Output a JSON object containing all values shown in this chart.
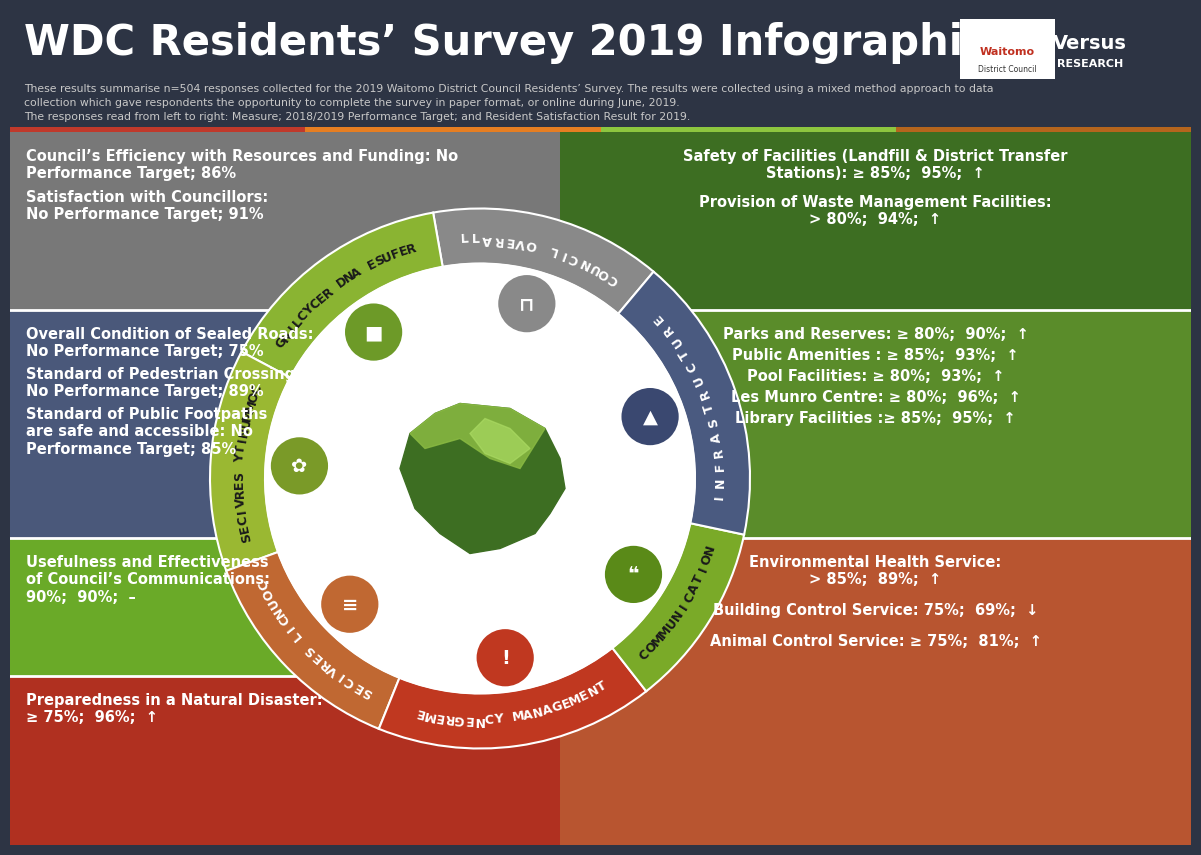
{
  "title": "WDC Residents’ Survey 2019 Infographic",
  "sub1": "These results summarise n=504 responses collected for the 2019 Waitomo District Council Residents’ Survey. The results were collected using a mixed method approach to data",
  "sub2": "collection which gave respondents the opportunity to complete the survey in paper format, or online during June, 2019.",
  "sub3": "The responses read from left to right: Measure; 2018/2019 Performance Target; and Resident Satisfaction Result for 2019.",
  "bg_header": "#2d3444",
  "accent_colors": [
    "#c0392b",
    "#e67e22",
    "#8dc63f",
    "#b5651d"
  ],
  "panel_gray": "#787878",
  "panel_blue": "#4a587a",
  "panel_green": "#6aaa28",
  "panel_red": "#b03020",
  "panel_dkgreen": "#3d6e22",
  "panel_mdgreen": "#5a8c2a",
  "panel_orange": "#b85530",
  "top_left_texts": [
    "Council’s Efficiency with Resources and Funding: No\nPerformance Target; 86%",
    "Satisfaction with Councillors:\nNo Performance Target; 91%"
  ],
  "mid_left_texts": [
    "Overall Condition of Sealed Roads:\nNo Performance Target; 75%",
    "Standard of Pedestrian Crossings:\nNo Performance Target; 89%",
    "Standard of Public Footpaths\nare safe and accessible: No\nPerformance Target; 85%"
  ],
  "bot_left_text": "Usefulness and Effectiveness\nof Council’s Communications:\n90%;  90%;  –",
  "vbot_left_text": "Preparedness in a Natural Disaster:\n≥ 75%;  96%;  ↑",
  "top_right_texts": [
    "Safety of Facilities (Landfill & District Transfer\nStations): ≥ 85%;  95%;  ↑",
    "Provision of Waste Management Facilities:\n> 80%;  94%;  ↑"
  ],
  "mid_right_texts": [
    "Parks and Reserves: ≥ 80%;  90%;  ↑",
    "Public Amenities : ≥ 85%;  93%;  ↑",
    "Pool Facilities: ≥ 80%;  93%;  ↑",
    "Les Munro Centre: ≥ 80%;  96%;  ↑",
    "Library Facilities :≥ 85%;  95%;  ↑"
  ],
  "bot_right_texts": [
    "Environmental Health Service:\n> 85%;  89%;  ↑",
    "Building Control Service: 75%;  69%;  ↓",
    "Animal Control Service: ≥ 75%;  81%;  ↑"
  ],
  "seg_council_overall": {
    "t1": 50,
    "t2": 100,
    "color": "#898989",
    "label": "COUNCIL OVERALL",
    "icon_color": "#898989"
  },
  "seg_refuse": {
    "t1": 100,
    "t2": 152,
    "color": "#8ab432",
    "label": "REFUSE AND RECYCLING",
    "icon_color": "#6d9a28"
  },
  "seg_community": {
    "t1": 152,
    "t2": 200,
    "color": "#9ab832",
    "label": "COMMUNITY SERVICES",
    "icon_color": "#7a9a28"
  },
  "seg_council_services": {
    "t1": 200,
    "t2": 248,
    "color": "#c06832",
    "label": "COUNCIL SERVICES",
    "icon_color": "#c06832"
  },
  "seg_emergency": {
    "t1": 248,
    "t2": 308,
    "color": "#c03820",
    "label": "EMERGENCY MANAGEMENT",
    "icon_color": "#c03820"
  },
  "seg_communication": {
    "t1": 308,
    "t2": 348,
    "color": "#7aaa28",
    "label": "COMMUNICATION",
    "icon_color": "#5a8a18"
  },
  "seg_infrastructure": {
    "t1": 348,
    "t2": 410,
    "color": "#4a5a80",
    "label": "INFRASTRUCTURE",
    "icon_color": "#3a4870"
  }
}
